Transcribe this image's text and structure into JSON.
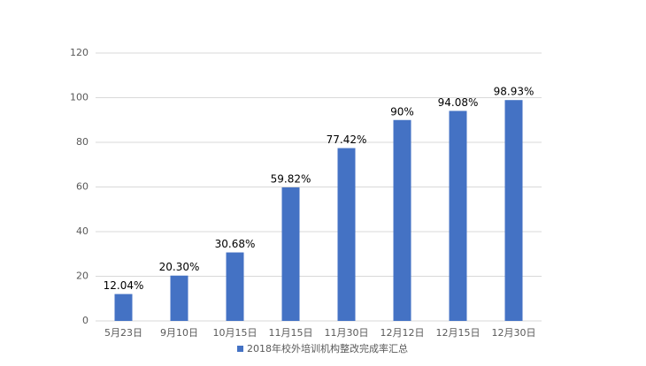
{
  "chart_data": {
    "type": "bar",
    "categories": [
      "5月23日",
      "9月10日",
      "10月15日",
      "11月15日",
      "11月30日",
      "12月12日",
      "12月15日",
      "12月30日"
    ],
    "series": [
      {
        "name": "2018年校外培训机构整改完成率汇总",
        "color": "#4472c4",
        "values": [
          12.04,
          20.3,
          30.68,
          59.82,
          77.42,
          90,
          94.08,
          98.93
        ],
        "value_labels": [
          "12.04%",
          "20.30%",
          "30.68%",
          "59.82%",
          "77.42%",
          "90%",
          "94.08%",
          "98.93%"
        ]
      }
    ],
    "ylim": [
      0,
      120
    ],
    "yticks": [
      0,
      20,
      40,
      60,
      80,
      100,
      120
    ],
    "grid": true,
    "legend": "bottom"
  }
}
